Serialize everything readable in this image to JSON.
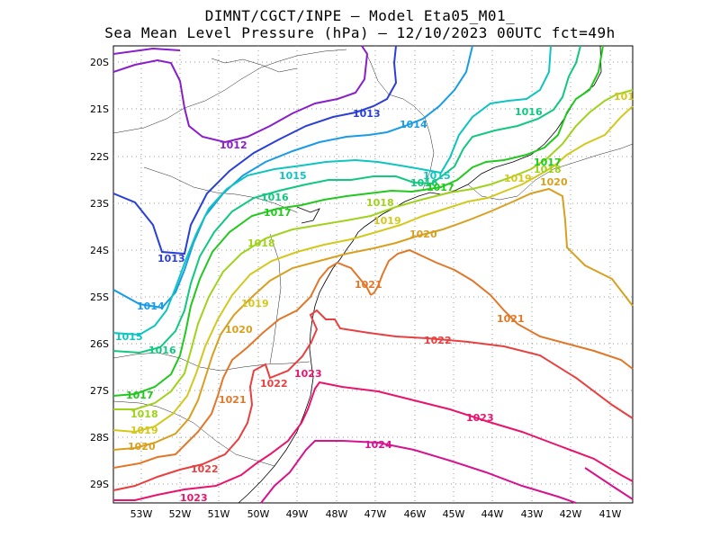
{
  "title": {
    "line1": "DIMNT/CGCT/INPE –  Model Eta05_M01_",
    "line2": "Sea Mean Level Pressure (hPa) – 12/10/2023 00UTC fct=49h"
  },
  "axes": {
    "lat_labels": [
      "20S",
      "21S",
      "22S",
      "23S",
      "24S",
      "25S",
      "26S",
      "27S",
      "28S",
      "29S"
    ],
    "lon_labels": [
      "53W",
      "52W",
      "51W",
      "50W",
      "49W",
      "48W",
      "47W",
      "46W",
      "45W",
      "44W",
      "43W",
      "42W",
      "41W"
    ]
  },
  "contour_labels": [
    {
      "text": "1012",
      "color": "#8a1ec8"
    },
    {
      "text": "1013",
      "color": "#2a3fd6"
    },
    {
      "text": "1013",
      "color": "#2a3fd6"
    },
    {
      "text": "1014",
      "color": "#1a9be6"
    },
    {
      "text": "1014",
      "color": "#1a9be6"
    },
    {
      "text": "1015",
      "color": "#10c4c0"
    },
    {
      "text": "1015",
      "color": "#10c4c0"
    },
    {
      "text": "1015",
      "color": "#10c4c0"
    },
    {
      "text": "1016",
      "color": "#10c880"
    },
    {
      "text": "1016",
      "color": "#10c880"
    },
    {
      "text": "1016",
      "color": "#10c880"
    },
    {
      "text": "1016",
      "color": "#10c880"
    },
    {
      "text": "1017",
      "color": "#22c81e"
    },
    {
      "text": "1017",
      "color": "#22c81e"
    },
    {
      "text": "1017",
      "color": "#22c81e"
    },
    {
      "text": "1017",
      "color": "#22c81e"
    },
    {
      "text": "1018",
      "color": "#a0d21c"
    },
    {
      "text": "1018",
      "color": "#a0d21c"
    },
    {
      "text": "1018",
      "color": "#a0d21c"
    },
    {
      "text": "1018",
      "color": "#a0d21c"
    },
    {
      "text": "1019",
      "color": "#d2c81e"
    },
    {
      "text": "1019",
      "color": "#d2c81e"
    },
    {
      "text": "1019",
      "color": "#d2c81e"
    },
    {
      "text": "1019",
      "color": "#d2c81e"
    },
    {
      "text": "101",
      "color": "#d2c81e"
    },
    {
      "text": "1020",
      "color": "#d8a020"
    },
    {
      "text": "1020",
      "color": "#d8a020"
    },
    {
      "text": "1020",
      "color": "#d8a020"
    },
    {
      "text": "1020",
      "color": "#d8a020"
    },
    {
      "text": "1021",
      "color": "#e0782a"
    },
    {
      "text": "1021",
      "color": "#e0782a"
    },
    {
      "text": "1021",
      "color": "#e0782a"
    },
    {
      "text": "1022",
      "color": "#e84040"
    },
    {
      "text": "1022",
      "color": "#e84040"
    },
    {
      "text": "1022",
      "color": "#e84040"
    },
    {
      "text": "1023",
      "color": "#e8146e"
    },
    {
      "text": "1023",
      "color": "#e8146e"
    },
    {
      "text": "1023",
      "color": "#e8146e"
    },
    {
      "text": "1024",
      "color": "#d41490"
    }
  ]
}
